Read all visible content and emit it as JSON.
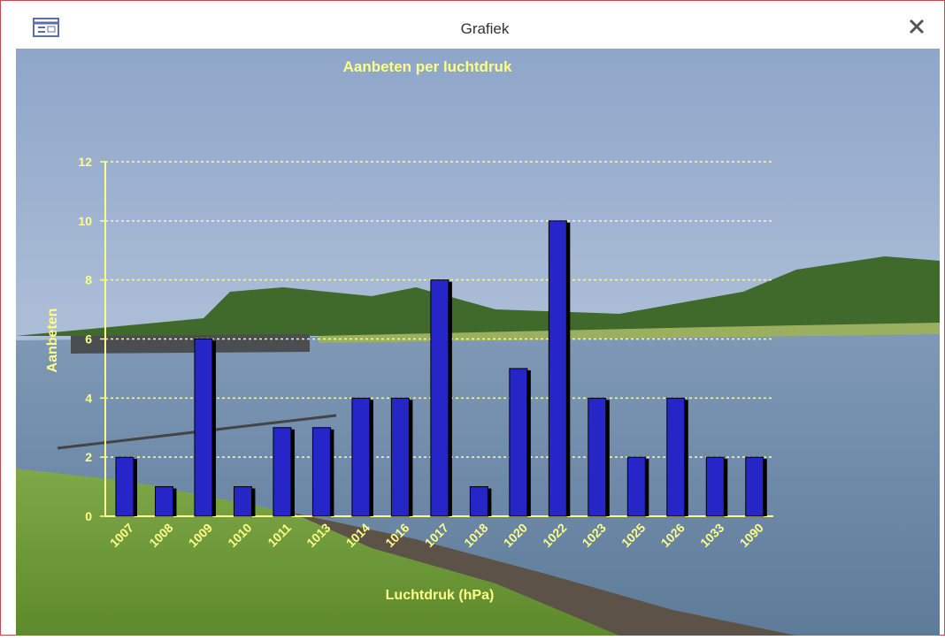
{
  "window": {
    "title": "Grafiek"
  },
  "chart_data": {
    "type": "bar",
    "title": "Aanbeten per luchtdruk",
    "x_label": "Luchtdruk (hPa)",
    "y_label": "Aanbeten",
    "categories": [
      "1007",
      "1008",
      "1009",
      "1010",
      "1011",
      "1013",
      "1014",
      "1016",
      "1017",
      "1018",
      "1020",
      "1022",
      "1023",
      "1025",
      "1026",
      "1033",
      "1090"
    ],
    "values": [
      2,
      1,
      6,
      1,
      3,
      3,
      4,
      4,
      8,
      1,
      5,
      10,
      4,
      2,
      4,
      2,
      2
    ],
    "color": "#2626c8",
    "ylim": [
      0,
      12
    ],
    "yticks": [
      0,
      2,
      4,
      6,
      8,
      10,
      12
    ],
    "grid": true
  }
}
